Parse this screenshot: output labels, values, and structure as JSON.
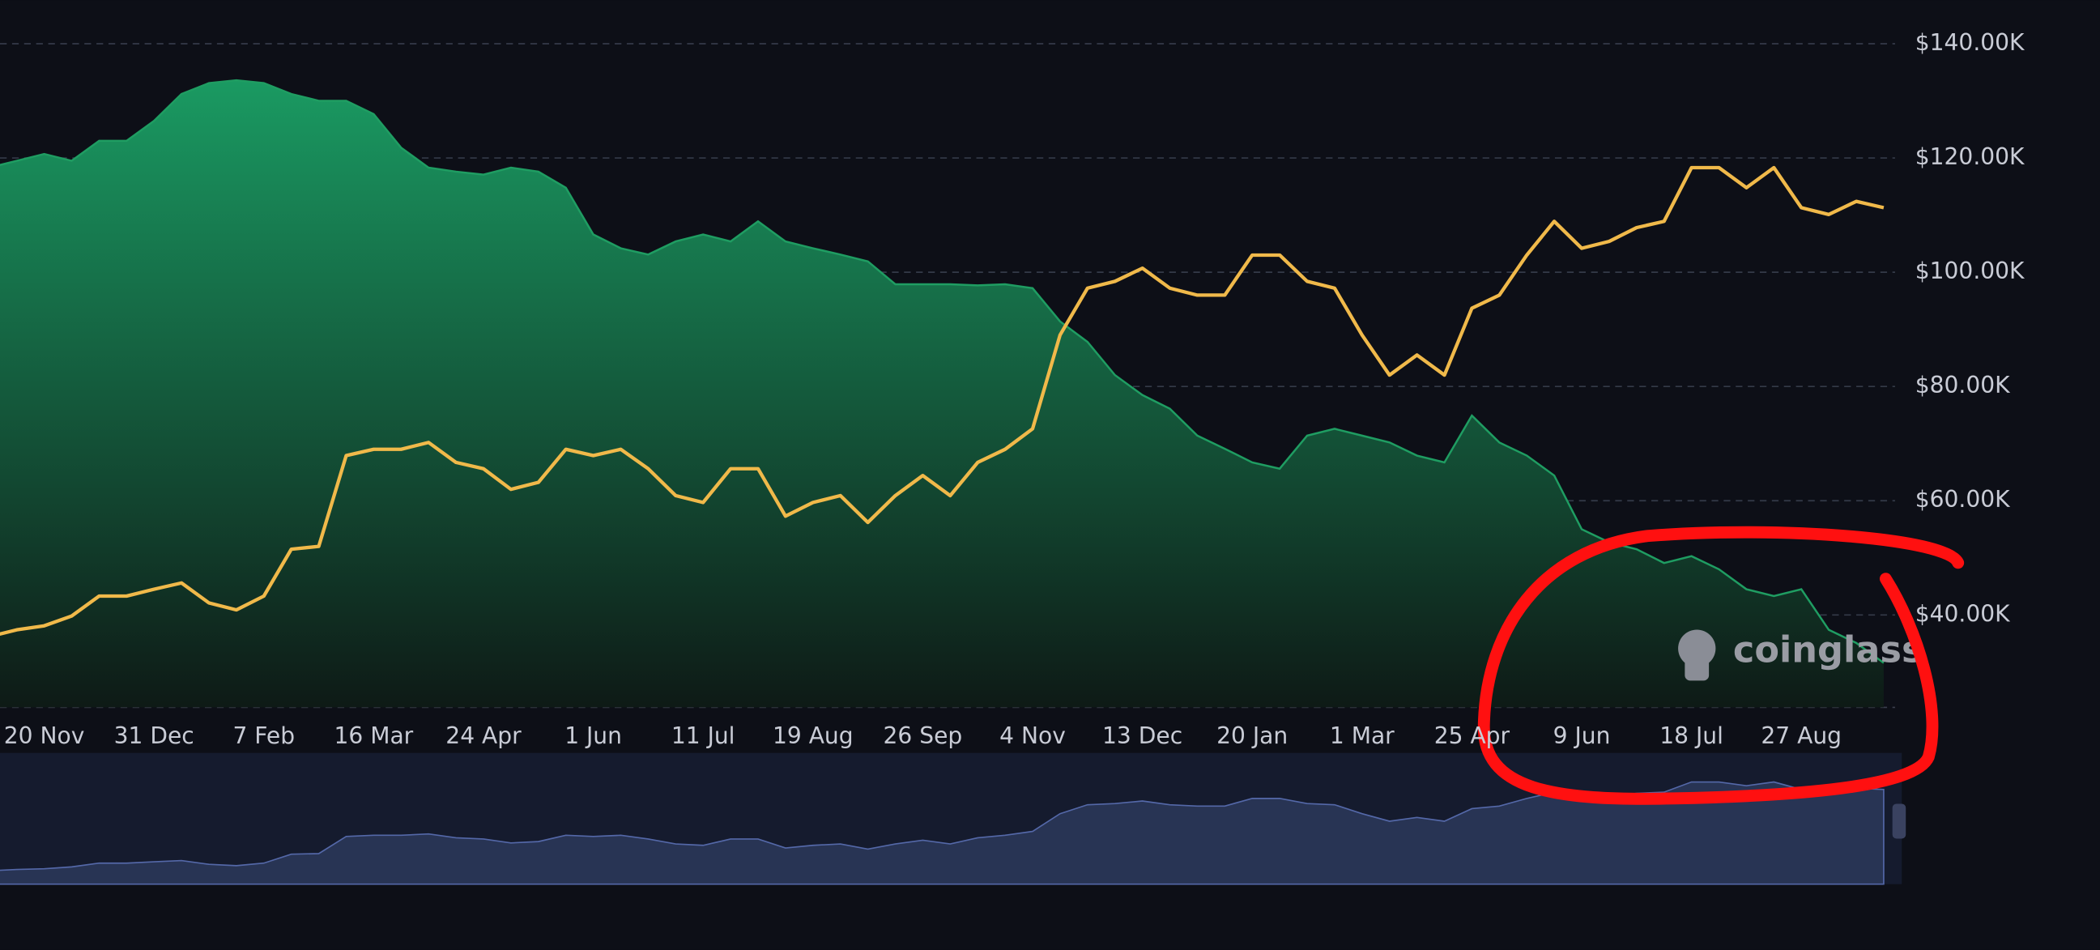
{
  "chart_data": {
    "type": "area-line",
    "categories": [
      null,
      null,
      "20 Nov",
      null,
      null,
      null,
      "31 Dec",
      null,
      null,
      null,
      "7 Feb",
      null,
      null,
      null,
      "16 Mar",
      null,
      null,
      null,
      "24 Apr",
      null,
      null,
      null,
      "1 Jun",
      null,
      null,
      null,
      "11 Jul",
      null,
      null,
      null,
      "19 Aug",
      null,
      null,
      null,
      "26 Sep",
      null,
      null,
      null,
      "4 Nov",
      null,
      null,
      null,
      "13 Dec",
      null,
      null,
      null,
      "20 Jan",
      null,
      null,
      null,
      "1 Mar",
      null,
      null,
      null,
      "25 Apr",
      null,
      null,
      null,
      "9 Jun",
      null,
      null,
      null,
      "18 Jul",
      null,
      null,
      null,
      "27 Aug",
      null,
      null,
      null
    ],
    "series": [
      {
        "type": "area",
        "color": "#1f9d62",
        "values": [
          118300,
          119500,
          120700,
          119500,
          123000,
          123000,
          126500,
          131200,
          133100,
          133600,
          133100,
          131200,
          130000,
          130000,
          127700,
          121800,
          118300,
          117600,
          117100,
          118300,
          117600,
          114800,
          106600,
          104200,
          103100,
          105400,
          106600,
          105400,
          108900,
          105400,
          104200,
          103100,
          101900,
          97900,
          97900,
          97900,
          97700,
          97900,
          97200,
          91400,
          87800,
          82000,
          78500,
          76100,
          71400,
          69100,
          66700,
          65600,
          71400,
          72600,
          71400,
          70200,
          67900,
          66700,
          74900,
          70200,
          67900,
          64400,
          55000,
          52700,
          51500,
          49100,
          50300,
          48000,
          44500,
          43300,
          44500,
          37400,
          35100,
          31600
        ]
      },
      {
        "type": "line",
        "color": "#f0b94a",
        "values": [
          36200,
          37400,
          38100,
          39800,
          43300,
          43300,
          44500,
          45600,
          42100,
          40900,
          43300,
          51500,
          52000,
          67900,
          69000,
          69000,
          70200,
          66700,
          65600,
          62000,
          63200,
          69000,
          67900,
          69000,
          65600,
          60900,
          59700,
          65600,
          65600,
          57300,
          59700,
          60900,
          56200,
          60900,
          64400,
          60900,
          66700,
          69000,
          72600,
          89000,
          97200,
          98400,
          100700,
          97200,
          96000,
          96000,
          103000,
          103000,
          98400,
          97200,
          89000,
          82000,
          85500,
          82000,
          93700,
          96000,
          103000,
          108900,
          104200,
          105400,
          107800,
          108900,
          118300,
          118300,
          114800,
          118300,
          111300,
          110100,
          112400,
          111300
        ]
      }
    ],
    "ylim": [
      23820,
      147620
    ],
    "yticks": [
      {
        "value": 40000,
        "label": "$40.00K"
      },
      {
        "value": 60000,
        "label": "$60.00K"
      },
      {
        "value": 80000,
        "label": "$80.00K"
      },
      {
        "value": 100000,
        "label": "$100.00K"
      },
      {
        "value": 120000,
        "label": "$120.00K"
      },
      {
        "value": 140000,
        "label": "$140.00K"
      }
    ],
    "grid": true,
    "watermark": "coinglass"
  }
}
